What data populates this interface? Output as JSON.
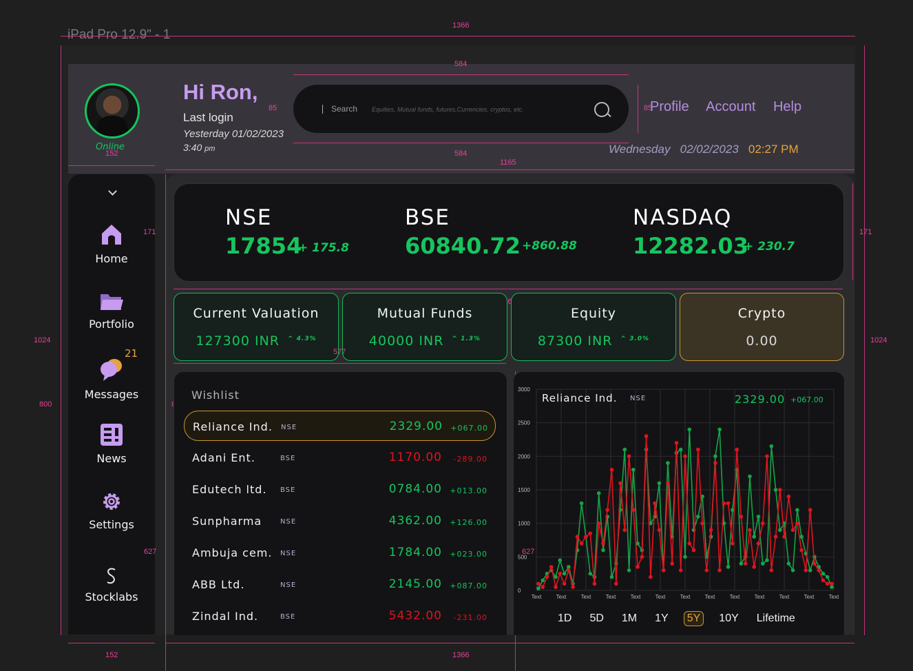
{
  "frame_label": "iPad Pro 12.9\" - 1",
  "annotations": {
    "width_full": "1366",
    "search_w": "584",
    "search_h": "85",
    "search_h2": "85",
    "sidebar_w": "152",
    "content_w": "1165",
    "ticker_h": "171",
    "height_full": "1024",
    "main_h": "800",
    "wish_h": "800",
    "card_w": "577",
    "lower_h": "627",
    "lower_h2": "627"
  },
  "user": {
    "greeting": "Hi Ron,",
    "status": "Online",
    "last_login_label": "Last login",
    "last_login_date": "Yesterday 01/02/2023",
    "last_login_time": "3:40",
    "last_login_ampm": "pm"
  },
  "search": {
    "label": "Search",
    "placeholder": "Equities, Mutual funds, futures,Currencies, cryptos, etc."
  },
  "header_links": [
    "Profile",
    "Account",
    "Help"
  ],
  "datetime": {
    "day": "Wednesday",
    "date": "02/02/2023",
    "time": "02:27 PM"
  },
  "nav": [
    {
      "label": "Home",
      "icon": "home-icon"
    },
    {
      "label": "Portfolio",
      "icon": "folder-icon"
    },
    {
      "label": "Messages",
      "icon": "chat-icon",
      "badge": "21"
    },
    {
      "label": "News",
      "icon": "news-icon"
    },
    {
      "label": "Settings",
      "icon": "gear-icon"
    },
    {
      "label": "Stocklabs",
      "icon": "stocklabs-logo-icon"
    }
  ],
  "tickers": [
    {
      "name": "NSE",
      "value": "17854",
      "change": "+ 175.8"
    },
    {
      "name": "BSE",
      "value": "60840.72",
      "change": "+860.88"
    },
    {
      "name": "NASDAQ",
      "value": "12282.03",
      "change": "+ 230.7"
    }
  ],
  "cards": [
    {
      "title": "Current Valuation",
      "value": "127300 INR",
      "change": "^ 4.3%"
    },
    {
      "title": "Mutual Funds",
      "value": "40000 INR",
      "change": "^ 1.3%"
    },
    {
      "title": "Equity",
      "value": "87300 INR",
      "change": "^ 3.0%"
    },
    {
      "title": "Crypto",
      "value": "0.00",
      "change": ""
    }
  ],
  "wishlist": {
    "title": "Wishlist",
    "rows": [
      {
        "name": "Reliance Ind.",
        "exchange": "NSE",
        "price": "2329.00",
        "change": "+067.00",
        "dir": "up"
      },
      {
        "name": "Adani Ent.",
        "exchange": "BSE",
        "price": "1170.00",
        "change": "-289.00",
        "dir": "dn"
      },
      {
        "name": "Edutech ltd.",
        "exchange": "BSE",
        "price": "0784.00",
        "change": "+013.00",
        "dir": "up"
      },
      {
        "name": "Sunpharma",
        "exchange": "NSE",
        "price": "4362.00",
        "change": "+126.00",
        "dir": "up"
      },
      {
        "name": "Ambuja cem.",
        "exchange": "NSE",
        "price": "1784.00",
        "change": "+023.00",
        "dir": "up"
      },
      {
        "name": "ABB Ltd.",
        "exchange": "NSE",
        "price": "2145.00",
        "change": "+087.00",
        "dir": "up"
      },
      {
        "name": "Zindal Ind.",
        "exchange": "BSE",
        "price": "5432.00",
        "change": "-231.00",
        "dir": "dn"
      }
    ]
  },
  "chart_panel": {
    "name": "Reliance Ind.",
    "exchange": "NSE",
    "price": "2329.00",
    "change": "+067.00",
    "ranges": [
      "1D",
      "5D",
      "1M",
      "1Y",
      "5Y",
      "10Y",
      "Lifetime"
    ],
    "active_range": "5Y"
  },
  "chart_data": {
    "type": "line",
    "title": "",
    "xlabel": "",
    "ylabel": "",
    "ylim": [
      0,
      3000
    ],
    "yticks": [
      0,
      500,
      1000,
      1500,
      2000,
      2500,
      3000
    ],
    "xtick_labels": [
      "Text",
      "Text",
      "Text",
      "Text",
      "Text",
      "Text",
      "Text",
      "Text",
      "Text",
      "Text",
      "Text",
      "Text",
      "Text"
    ],
    "grid": true,
    "series": [
      {
        "color": "#16a34a",
        "values": [
          30,
          150,
          250,
          300,
          200,
          450,
          250,
          350,
          100,
          600,
          1300,
          800,
          250,
          200,
          1450,
          600,
          1100,
          200,
          400,
          1200,
          2100,
          300,
          1800,
          700,
          600,
          2100,
          1000,
          1100,
          1600,
          300,
          1900,
          800,
          2050,
          2100,
          500,
          2400,
          900,
          1100,
          1400,
          500,
          800,
          2000,
          2400,
          1000,
          350,
          1200,
          1800,
          400,
          500,
          1700,
          800,
          1100,
          400,
          450,
          2150,
          1500,
          900,
          1000,
          400,
          300,
          1200,
          800,
          550,
          300,
          500,
          350,
          250,
          200,
          50
        ]
      },
      {
        "color": "#e0141f",
        "values": [
          100,
          50,
          200,
          350,
          50,
          250,
          100,
          300,
          50,
          800,
          700,
          800,
          850,
          100,
          1000,
          700,
          1200,
          1800,
          100,
          1600,
          900,
          2000,
          1200,
          350,
          500,
          2300,
          200,
          1300,
          900,
          300,
          1600,
          400,
          2200,
          300,
          2000,
          700,
          600,
          2100,
          1000,
          300,
          900,
          1900,
          300,
          1300,
          1300,
          700,
          2100,
          1100,
          400,
          900,
          350,
          700,
          1000,
          2000,
          300,
          800,
          1500,
          800,
          1400,
          900,
          1000,
          600,
          300,
          1200,
          400,
          300,
          150,
          100,
          100
        ]
      }
    ]
  }
}
